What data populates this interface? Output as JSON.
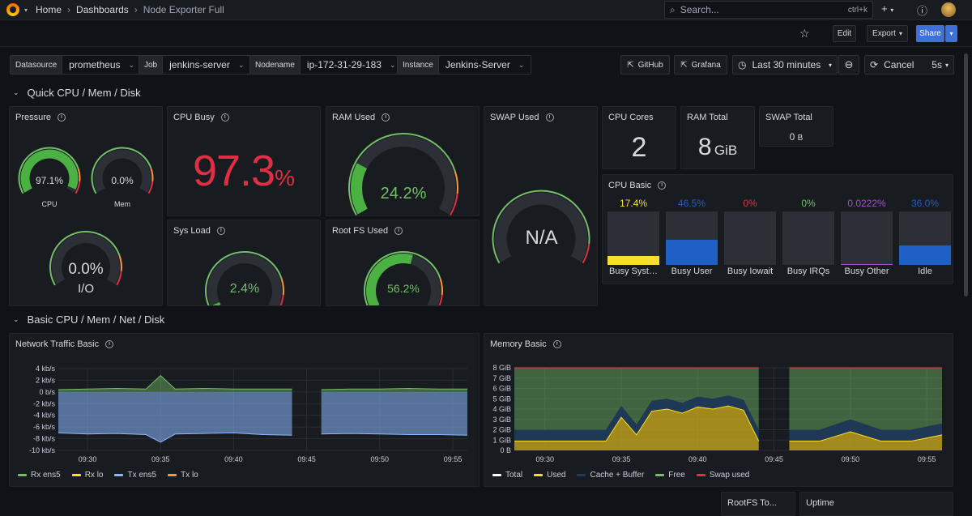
{
  "breadcrumb": {
    "home": "Home",
    "dashboards": "Dashboards",
    "current": "Node Exporter Full"
  },
  "search": {
    "placeholder": "Search...",
    "shortcut": "ctrl+k"
  },
  "toolbar": {
    "edit": "Edit",
    "export": "Export",
    "share": "Share"
  },
  "variables": [
    {
      "label": "Datasource",
      "value": "prometheus"
    },
    {
      "label": "Job",
      "value": "jenkins-server"
    },
    {
      "label": "Nodename",
      "value": "ip-172-31-29-183"
    },
    {
      "label": "Instance",
      "value": "Jenkins-Server"
    }
  ],
  "links": {
    "github": "GitHub",
    "grafana": "Grafana"
  },
  "time": {
    "range": "Last 30 minutes",
    "cancel": "Cancel",
    "refresh": "5s"
  },
  "sections": {
    "quick": "Quick CPU / Mem / Disk",
    "basic": "Basic CPU / Mem / Net / Disk"
  },
  "panels": {
    "pressure": {
      "title": "Pressure",
      "cpu": {
        "value": "97.1%",
        "label": "CPU",
        "pct": 97.1
      },
      "mem": {
        "value": "0.0%",
        "label": "Mem",
        "pct": 0
      },
      "io": {
        "value": "0.0%",
        "label": "I/O",
        "pct": 0
      }
    },
    "cpu_busy": {
      "title": "CPU Busy",
      "value": "97.3",
      "unit": "%"
    },
    "ram_used": {
      "title": "RAM Used",
      "value": "24.2%",
      "pct": 24.2
    },
    "swap_used": {
      "title": "SWAP Used",
      "value": "N/A"
    },
    "sys_load": {
      "title": "Sys Load",
      "value": "2.4%",
      "pct": 2.4
    },
    "root_fs": {
      "title": "Root FS Used",
      "value": "56.2%",
      "pct": 56.2
    },
    "cpu_cores": {
      "title": "CPU Cores",
      "value": "2"
    },
    "ram_total": {
      "title": "RAM Total",
      "value": "8",
      "unit": "GiB"
    },
    "swap_total": {
      "title": "SWAP Total",
      "value": "0",
      "unit": "B"
    },
    "cpu_basic": {
      "title": "CPU Basic",
      "bars": [
        {
          "value": "17.4%",
          "label": "Busy Syst…",
          "pct": 17.4,
          "color": "#fade2a"
        },
        {
          "value": "46.5%",
          "label": "Busy User",
          "pct": 46.5,
          "color": "#1f60c4"
        },
        {
          "value": "0%",
          "label": "Busy Iowait",
          "pct": 0,
          "color": "#e02f44"
        },
        {
          "value": "0%",
          "label": "Busy IRQs",
          "pct": 0,
          "color": "#73bf69"
        },
        {
          "value": "0.0222%",
          "label": "Busy Other",
          "pct": 0.0222,
          "color": "#a352cc"
        },
        {
          "value": "36.0%",
          "label": "Idle",
          "pct": 36.0,
          "color": "#1f60c4"
        }
      ]
    },
    "network": {
      "title": "Network Traffic Basic",
      "y_ticks": [
        "4 kb/s",
        "2 kb/s",
        "0 b/s",
        "-2 kb/s",
        "-4 kb/s",
        "-6 kb/s",
        "-8 kb/s",
        "-10 kb/s"
      ],
      "x_ticks": [
        "09:30",
        "09:35",
        "09:40",
        "09:45",
        "09:50",
        "09:55"
      ],
      "legend": [
        {
          "name": "Rx ens5",
          "color": "#73bf69"
        },
        {
          "name": "Rx lo",
          "color": "#fade2a"
        },
        {
          "name": "Tx ens5",
          "color": "#8ab8ff"
        },
        {
          "name": "Tx lo",
          "color": "#ff9830"
        }
      ]
    },
    "memory": {
      "title": "Memory Basic",
      "y_ticks": [
        "8 GiB",
        "7 GiB",
        "6 GiB",
        "5 GiB",
        "4 GiB",
        "3 GiB",
        "2 GiB",
        "1 GiB",
        "0 B"
      ],
      "x_ticks": [
        "09:30",
        "09:35",
        "09:40",
        "09:45",
        "09:50",
        "09:55"
      ],
      "legend": [
        {
          "name": "Total",
          "color": "#ffffff"
        },
        {
          "name": "Used",
          "color": "#fade2a"
        },
        {
          "name": "Cache + Buffer",
          "color": "#1f3a5a"
        },
        {
          "name": "Free",
          "color": "#73bf69"
        },
        {
          "name": "Swap used",
          "color": "#e02f44"
        }
      ]
    },
    "rootfs_total": {
      "title": "RootFS To..."
    },
    "uptime": {
      "title": "Uptime"
    }
  },
  "chart_data": [
    {
      "type": "area",
      "title": "Network Traffic Basic",
      "x": [
        "09:28",
        "09:30",
        "09:32",
        "09:34",
        "09:35",
        "09:36",
        "09:38",
        "09:40",
        "09:42",
        "09:44",
        "09:45",
        "09:46",
        "09:48",
        "09:50",
        "09:52",
        "09:54",
        "09:56"
      ],
      "series": [
        {
          "name": "Rx ens5",
          "values": [
            0.4,
            0.5,
            0.6,
            0.5,
            2.8,
            0.5,
            0.6,
            0.5,
            0.5,
            0.5,
            null,
            0.4,
            0.5,
            0.5,
            0.6,
            0.5,
            0.5
          ]
        },
        {
          "name": "Tx ens5",
          "values": [
            -7.0,
            -7.2,
            -7.1,
            -7.3,
            -8.6,
            -7.2,
            -7.1,
            -7.0,
            -7.3,
            -7.4,
            null,
            -7.2,
            -7.1,
            -7.2,
            -7.3,
            -7.3,
            -7.4
          ]
        }
      ],
      "ylim": [
        -10,
        4
      ]
    },
    {
      "type": "area",
      "title": "Memory Basic",
      "x": [
        "09:28",
        "09:30",
        "09:32",
        "09:34",
        "09:35",
        "09:36",
        "09:37",
        "09:38",
        "09:39",
        "09:40",
        "09:41",
        "09:42",
        "09:43",
        "09:44",
        "09:45",
        "09:46",
        "09:48",
        "09:50",
        "09:52",
        "09:54",
        "09:56"
      ],
      "series": [
        {
          "name": "Total",
          "values": [
            8,
            8,
            8,
            8,
            8,
            8,
            8,
            8,
            8,
            8,
            8,
            8,
            8,
            8,
            null,
            8,
            8,
            8,
            8,
            8,
            8
          ]
        },
        {
          "name": "Used",
          "values": [
            0.9,
            0.9,
            0.9,
            0.9,
            3.2,
            1.5,
            3.8,
            4.0,
            3.6,
            4.2,
            4.0,
            4.3,
            3.9,
            0.9,
            null,
            0.9,
            0.9,
            1.8,
            0.9,
            0.9,
            1.5
          ]
        },
        {
          "name": "Cache + Buffer",
          "values": [
            2.0,
            2.0,
            2.0,
            2.0,
            4.3,
            2.5,
            4.8,
            5.0,
            4.6,
            5.2,
            5.0,
            5.3,
            4.9,
            2.0,
            null,
            2.0,
            2.0,
            3.0,
            2.0,
            2.0,
            2.6
          ]
        },
        {
          "name": "Free",
          "values": [
            6.0,
            6.0,
            6.0,
            6.0,
            3.7,
            5.5,
            3.2,
            3.0,
            3.4,
            2.8,
            3.0,
            2.7,
            3.1,
            6.0,
            null,
            6.0,
            6.0,
            5.0,
            6.0,
            6.0,
            5.4
          ]
        },
        {
          "name": "Swap used",
          "values": [
            0,
            0,
            0,
            0,
            0,
            0,
            0,
            0,
            0,
            0,
            0,
            0,
            0,
            0,
            null,
            0,
            0,
            0,
            0,
            0,
            0
          ]
        }
      ],
      "ylim": [
        0,
        8
      ]
    }
  ]
}
